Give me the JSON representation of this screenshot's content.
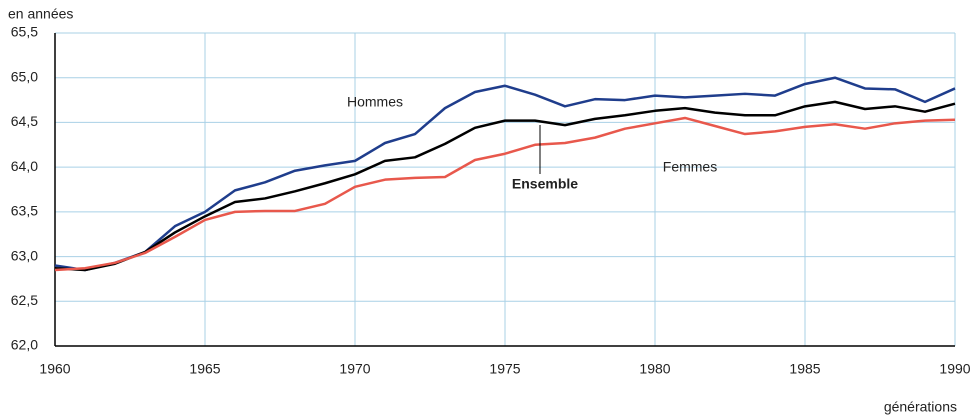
{
  "chart_data": {
    "type": "line",
    "y_label": "en années",
    "x_label": "générations",
    "x": [
      1960,
      1961,
      1962,
      1963,
      1964,
      1965,
      1966,
      1967,
      1968,
      1969,
      1970,
      1971,
      1972,
      1973,
      1974,
      1975,
      1976,
      1977,
      1978,
      1979,
      1980,
      1981,
      1982,
      1983,
      1984,
      1985,
      1986,
      1987,
      1988,
      1989,
      1990
    ],
    "series": [
      {
        "name": "Hommes",
        "color": "#1f3d8c",
        "values": [
          62.9,
          62.85,
          62.93,
          63.05,
          63.34,
          63.5,
          63.74,
          63.83,
          63.96,
          64.02,
          64.07,
          64.27,
          64.37,
          64.66,
          64.84,
          64.91,
          64.81,
          64.68,
          64.76,
          64.75,
          64.8,
          64.78,
          64.8,
          64.82,
          64.8,
          64.93,
          65.0,
          64.88,
          64.87,
          64.73,
          64.88
        ]
      },
      {
        "name": "Ensemble",
        "color": "#000000",
        "values": [
          62.87,
          62.85,
          62.92,
          63.05,
          63.27,
          63.45,
          63.61,
          63.65,
          63.73,
          63.82,
          63.92,
          64.07,
          64.11,
          64.26,
          64.44,
          64.52,
          64.52,
          64.47,
          64.54,
          64.58,
          64.63,
          64.66,
          64.61,
          64.58,
          64.58,
          64.68,
          64.73,
          64.65,
          64.68,
          64.62,
          64.71
        ]
      },
      {
        "name": "Femmes",
        "color": "#e8584c",
        "values": [
          62.85,
          62.87,
          62.93,
          63.04,
          63.22,
          63.41,
          63.5,
          63.51,
          63.51,
          63.59,
          63.78,
          63.86,
          63.88,
          63.89,
          64.08,
          64.15,
          64.25,
          64.27,
          64.33,
          64.43,
          64.49,
          64.55,
          64.46,
          64.37,
          64.4,
          64.45,
          64.48,
          64.43,
          64.49,
          64.52,
          64.53
        ]
      }
    ],
    "xlim": [
      1960,
      1990
    ],
    "xticks": [
      1960,
      1965,
      1970,
      1975,
      1980,
      1985,
      1990
    ],
    "ylim": [
      62.0,
      65.5
    ],
    "yticks": [
      {
        "value": 62.0,
        "label": "62,0"
      },
      {
        "value": 62.5,
        "label": "62,5"
      },
      {
        "value": 63.0,
        "label": "63,0"
      },
      {
        "value": 63.5,
        "label": "63,5"
      },
      {
        "value": 64.0,
        "label": "64,0"
      },
      {
        "value": 64.5,
        "label": "64,5"
      },
      {
        "value": 65.0,
        "label": "65,0"
      },
      {
        "value": 65.5,
        "label": "65,5"
      }
    ],
    "grid": true
  }
}
